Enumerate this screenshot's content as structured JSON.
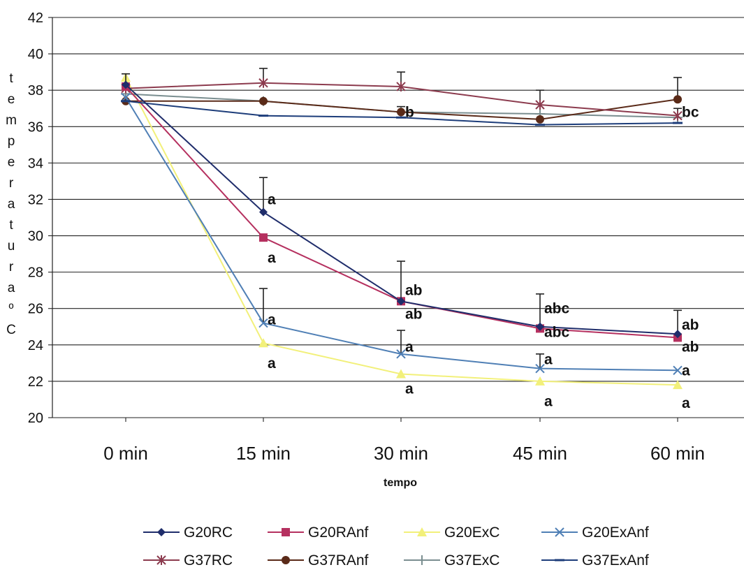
{
  "chart_data": {
    "type": "line",
    "title": "",
    "xlabel": "tempo",
    "ylabel": "temperatura °C",
    "ylabel_chars": [
      "t",
      "e",
      "m",
      "p",
      "e",
      "r",
      "a",
      "t",
      "u",
      "r",
      "a",
      "º",
      "C"
    ],
    "categories": [
      "0 min",
      "15 min",
      "30 min",
      "45 min",
      "60 min"
    ],
    "ylim": [
      20,
      42
    ],
    "yticks": [
      20,
      22,
      24,
      26,
      28,
      30,
      32,
      34,
      36,
      38,
      40,
      42
    ],
    "grid": "horizontal",
    "legend_position": "bottom",
    "series": [
      {
        "name": "G20RC",
        "color": "#1f2d6b",
        "marker": "diamond",
        "values": [
          38.3,
          31.3,
          26.4,
          25.0,
          24.6
        ],
        "errors": [
          0.6,
          1.9,
          2.2,
          1.8,
          1.3
        ]
      },
      {
        "name": "G20RAnf",
        "color": "#b5305f",
        "marker": "square",
        "values": [
          38.2,
          29.9,
          26.4,
          24.9,
          24.4
        ],
        "errors": [
          0,
          0,
          0,
          0,
          0
        ]
      },
      {
        "name": "G20ExC",
        "color": "#f2f07a",
        "marker": "triangle",
        "values": [
          38.7,
          24.1,
          22.4,
          22.0,
          21.8
        ],
        "errors": [
          0,
          0,
          0,
          0,
          0
        ]
      },
      {
        "name": "G20ExAnf",
        "color": "#4f7fb5",
        "marker": "x",
        "values": [
          37.6,
          25.2,
          23.5,
          22.7,
          22.6
        ],
        "errors": [
          0,
          1.9,
          1.3,
          0.8,
          0
        ]
      },
      {
        "name": "G37RC",
        "color": "#8c3b4e",
        "marker": "star",
        "values": [
          38.1,
          38.4,
          38.2,
          37.2,
          36.6
        ],
        "errors": [
          0,
          0.8,
          0.8,
          0.8,
          0
        ]
      },
      {
        "name": "G37RAnf",
        "color": "#5a2a18",
        "marker": "circle",
        "values": [
          37.4,
          37.4,
          36.8,
          36.4,
          37.5
        ],
        "errors": [
          0,
          0,
          0,
          0,
          1.2
        ]
      },
      {
        "name": "G37ExC",
        "color": "#7a8e90",
        "marker": "plus",
        "values": [
          37.8,
          37.4,
          36.8,
          36.7,
          36.5
        ],
        "errors": [
          0,
          0,
          0.3,
          0,
          0.5
        ]
      },
      {
        "name": "G37ExAnf",
        "color": "#1d3d7a",
        "marker": "dash",
        "values": [
          37.4,
          36.6,
          36.5,
          36.1,
          36.2
        ],
        "errors": [
          0,
          0,
          0,
          0,
          0
        ]
      }
    ],
    "annotations": [
      {
        "text": "a",
        "x": "15 min",
        "y": 32.0
      },
      {
        "text": "a",
        "x": "15 min",
        "y": 28.8
      },
      {
        "text": "a",
        "x": "15 min",
        "y": 25.4
      },
      {
        "text": "a",
        "x": "15 min",
        "y": 23.0
      },
      {
        "text": "b",
        "x": "30 min",
        "y": 36.8
      },
      {
        "text": "ab",
        "x": "30 min",
        "y": 27.0
      },
      {
        "text": "ab",
        "x": "30 min",
        "y": 25.7
      },
      {
        "text": "a",
        "x": "30 min",
        "y": 23.9
      },
      {
        "text": "a",
        "x": "30 min",
        "y": 21.6
      },
      {
        "text": "abc",
        "x": "45 min",
        "y": 26.0
      },
      {
        "text": "abc",
        "x": "45 min",
        "y": 24.7
      },
      {
        "text": "a",
        "x": "45 min",
        "y": 23.2
      },
      {
        "text": "a",
        "x": "45 min",
        "y": 20.9
      },
      {
        "text": "bc",
        "x": "60 min",
        "y": 36.8
      },
      {
        "text": "ab",
        "x": "60 min",
        "y": 25.1
      },
      {
        "text": "ab",
        "x": "60 min",
        "y": 23.9
      },
      {
        "text": "a",
        "x": "60 min",
        "y": 22.6
      },
      {
        "text": "a",
        "x": "60 min",
        "y": 20.8
      }
    ]
  }
}
